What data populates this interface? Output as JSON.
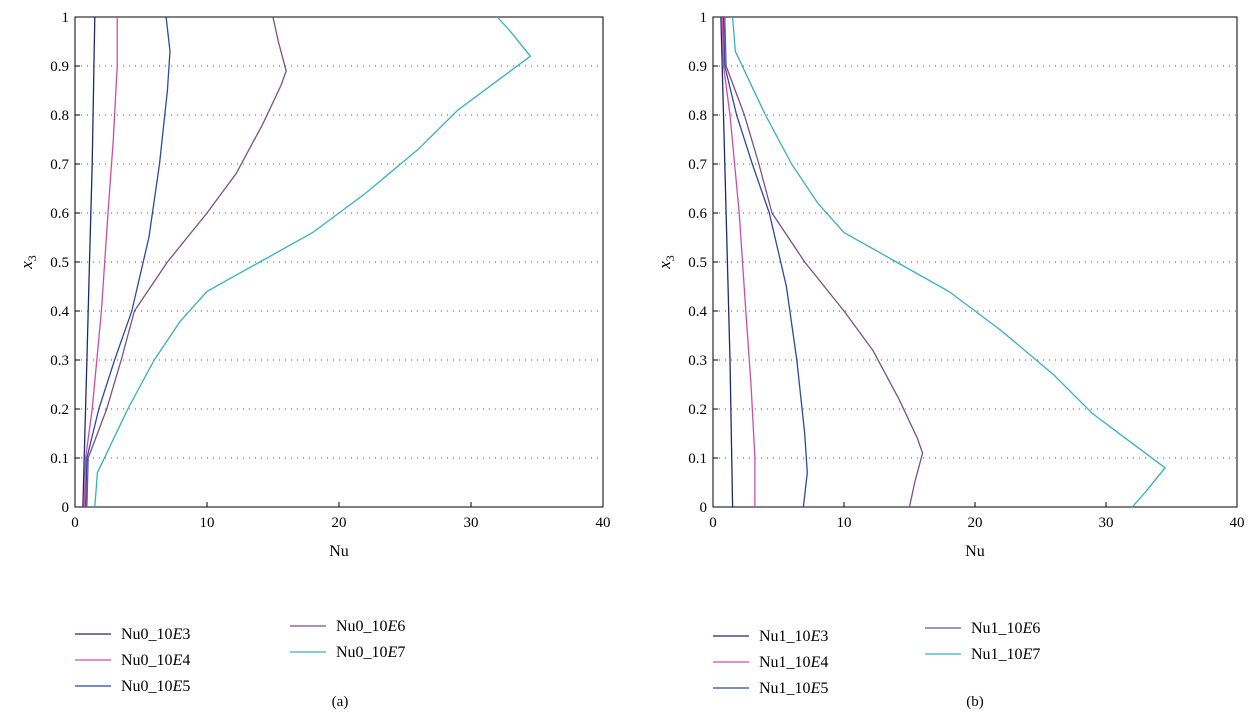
{
  "chart_data": [
    {
      "type": "line",
      "caption": "(a)",
      "xlabel": "Nu",
      "ylabel_main": "x",
      "ylabel_sub": "3",
      "xlim": [
        0,
        40
      ],
      "ylim": [
        0,
        1
      ],
      "xticks": [
        "0",
        "10",
        "20",
        "30",
        "40"
      ],
      "yticks": [
        "0",
        "0.1",
        "0.2",
        "0.3",
        "0.4",
        "0.5",
        "0.6",
        "0.7",
        "0.8",
        "0.9",
        "1"
      ],
      "grid": "horizontal dotted",
      "legend_placement": "below",
      "series": [
        {
          "name_prefix": "Nu0_10",
          "name_exp": "E3",
          "color": "#1f2a6e",
          "points": [
            [
              0.6,
              0
            ],
            [
              0.7,
              0.1
            ],
            [
              0.9,
              0.3
            ],
            [
              1.1,
              0.5
            ],
            [
              1.3,
              0.7
            ],
            [
              1.4,
              0.85
            ],
            [
              1.5,
              1.0
            ]
          ]
        },
        {
          "name_prefix": "Nu0_10",
          "name_exp": "E4",
          "color": "#cc4da6",
          "points": [
            [
              0.7,
              0
            ],
            [
              0.8,
              0.1
            ],
            [
              1.3,
              0.2
            ],
            [
              2.0,
              0.4
            ],
            [
              2.5,
              0.6
            ],
            [
              2.9,
              0.75
            ],
            [
              3.2,
              0.9
            ],
            [
              3.2,
              1.0
            ]
          ]
        },
        {
          "name_prefix": "Nu0_10",
          "name_exp": "E5",
          "color": "#2b49a5",
          "points": [
            [
              0.8,
              0
            ],
            [
              0.9,
              0.1
            ],
            [
              1.8,
              0.2
            ],
            [
              3.0,
              0.3
            ],
            [
              4.3,
              0.4
            ],
            [
              5.6,
              0.55
            ],
            [
              6.4,
              0.7
            ],
            [
              7.0,
              0.85
            ],
            [
              7.2,
              0.93
            ],
            [
              6.9,
              1.0
            ]
          ]
        },
        {
          "name_prefix": "Nu0_10",
          "name_exp": "E6",
          "color": "#7a4f8c",
          "points": [
            [
              0.9,
              0
            ],
            [
              1.0,
              0.1
            ],
            [
              2.4,
              0.2
            ],
            [
              3.5,
              0.3
            ],
            [
              4.5,
              0.4
            ],
            [
              7.0,
              0.5
            ],
            [
              10.0,
              0.6
            ],
            [
              12.2,
              0.68
            ],
            [
              14.2,
              0.78
            ],
            [
              15.6,
              0.86
            ],
            [
              16.0,
              0.89
            ],
            [
              15.4,
              0.95
            ],
            [
              15.0,
              1.0
            ]
          ]
        },
        {
          "name_prefix": "Nu0_10",
          "name_exp": "E7",
          "color": "#35b0c2",
          "points": [
            [
              1.5,
              0
            ],
            [
              1.7,
              0.07
            ],
            [
              4.0,
              0.2
            ],
            [
              6.0,
              0.3
            ],
            [
              8.0,
              0.38
            ],
            [
              10.0,
              0.44
            ],
            [
              14.0,
              0.5
            ],
            [
              18.0,
              0.56
            ],
            [
              22.0,
              0.64
            ],
            [
              26.0,
              0.73
            ],
            [
              29.0,
              0.81
            ],
            [
              32.0,
              0.87
            ],
            [
              34.5,
              0.92
            ],
            [
              33.0,
              0.97
            ],
            [
              32.0,
              1.0
            ]
          ]
        }
      ]
    },
    {
      "type": "line",
      "caption": "(b)",
      "xlabel": "Nu",
      "ylabel_main": "x",
      "ylabel_sub": "3",
      "xlim": [
        0,
        40
      ],
      "ylim": [
        0,
        1
      ],
      "xticks": [
        "0",
        "10",
        "20",
        "30",
        "40"
      ],
      "yticks": [
        "0",
        "0.1",
        "0.2",
        "0.3",
        "0.4",
        "0.5",
        "0.6",
        "0.7",
        "0.8",
        "0.9",
        "1"
      ],
      "grid": "horizontal dotted",
      "legend_placement": "below",
      "series": [
        {
          "name_prefix": "Nu1_10",
          "name_exp": "E3",
          "color": "#1f2a6e",
          "points": [
            [
              1.5,
              0
            ],
            [
              1.4,
              0.15
            ],
            [
              1.3,
              0.3
            ],
            [
              1.1,
              0.5
            ],
            [
              0.9,
              0.7
            ],
            [
              0.7,
              0.9
            ],
            [
              0.6,
              1.0
            ]
          ]
        },
        {
          "name_prefix": "Nu1_10",
          "name_exp": "E4",
          "color": "#cc4da6",
          "points": [
            [
              3.2,
              0
            ],
            [
              3.2,
              0.1
            ],
            [
              2.9,
              0.25
            ],
            [
              2.5,
              0.4
            ],
            [
              2.0,
              0.6
            ],
            [
              1.3,
              0.8
            ],
            [
              0.8,
              0.9
            ],
            [
              0.7,
              1.0
            ]
          ]
        },
        {
          "name_prefix": "Nu1_10",
          "name_exp": "E5",
          "color": "#2b49a5",
          "points": [
            [
              6.9,
              0
            ],
            [
              7.2,
              0.07
            ],
            [
              7.0,
              0.15
            ],
            [
              6.4,
              0.3
            ],
            [
              5.6,
              0.45
            ],
            [
              4.3,
              0.6
            ],
            [
              3.0,
              0.7
            ],
            [
              1.8,
              0.8
            ],
            [
              0.9,
              0.9
            ],
            [
              0.8,
              1.0
            ]
          ]
        },
        {
          "name_prefix": "Nu1_10",
          "name_exp": "E6",
          "color": "#7a4f8c",
          "points": [
            [
              15.0,
              0
            ],
            [
              15.4,
              0.05
            ],
            [
              16.0,
              0.11
            ],
            [
              15.6,
              0.14
            ],
            [
              14.2,
              0.22
            ],
            [
              12.2,
              0.32
            ],
            [
              10.0,
              0.4
            ],
            [
              7.0,
              0.5
            ],
            [
              4.5,
              0.6
            ],
            [
              3.5,
              0.7
            ],
            [
              2.4,
              0.8
            ],
            [
              1.0,
              0.9
            ],
            [
              0.9,
              1.0
            ]
          ]
        },
        {
          "name_prefix": "Nu1_10",
          "name_exp": "E7",
          "color": "#35b0c2",
          "points": [
            [
              32.0,
              0
            ],
            [
              33.0,
              0.03
            ],
            [
              34.5,
              0.08
            ],
            [
              32.0,
              0.13
            ],
            [
              29.0,
              0.19
            ],
            [
              26.0,
              0.27
            ],
            [
              22.0,
              0.36
            ],
            [
              18.0,
              0.44
            ],
            [
              14.0,
              0.5
            ],
            [
              10.0,
              0.56
            ],
            [
              8.0,
              0.62
            ],
            [
              6.0,
              0.7
            ],
            [
              4.0,
              0.8
            ],
            [
              1.7,
              0.93
            ],
            [
              1.5,
              1.0
            ]
          ]
        }
      ]
    }
  ]
}
